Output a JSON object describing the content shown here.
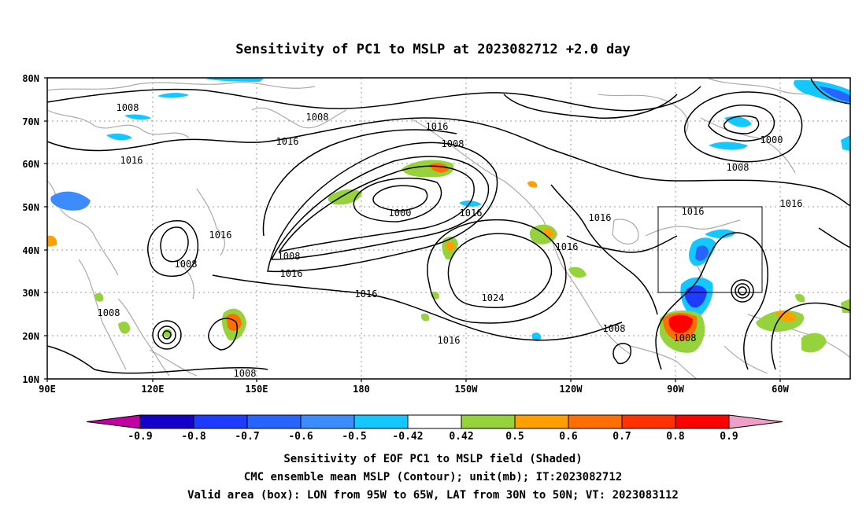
{
  "title": "Sensitivity of PC1 to MSLP at 2023082712 +2.0 day",
  "lat_labels": [
    "80N",
    "70N",
    "60N",
    "50N",
    "40N",
    "30N",
    "20N",
    "10N"
  ],
  "lon_labels": [
    "90E",
    "120E",
    "150E",
    "180",
    "150W",
    "120W",
    "90W",
    "60W"
  ],
  "contour_labels": [
    "1000",
    "1008",
    "1016",
    "1024"
  ],
  "colorbar": {
    "labels": [
      "-0.9",
      "-0.8",
      "-0.7",
      "-0.6",
      "-0.5",
      "-0.42",
      "0.42",
      "0.5",
      "0.6",
      "0.7",
      "0.8",
      "0.9"
    ],
    "colors": [
      "#c000a0",
      "#1400c8",
      "#1e3cff",
      "#2864ff",
      "#3c8cff",
      "#14c8ff",
      "#ffffff",
      "#96d23c",
      "#ffa000",
      "#ff6e00",
      "#ff3200",
      "#ff0000",
      "#f0a0c8"
    ]
  },
  "footer": {
    "line1": "Sensitivity of EOF PC1 to MSLP field (Shaded)",
    "line2": "CMC ensemble mean MSLP (Contour); unit(mb); IT:2023082712",
    "line3": "Valid area (box): LON from 95W to 65W, LAT from 30N to 50N; VT: 2023083112"
  },
  "map": {
    "lon_range_east": [
      90,
      310
    ],
    "lat_range": [
      10,
      80
    ],
    "valid_box": {
      "lon": [
        "95W",
        "65W"
      ],
      "lat": [
        "30N",
        "50N"
      ]
    }
  }
}
